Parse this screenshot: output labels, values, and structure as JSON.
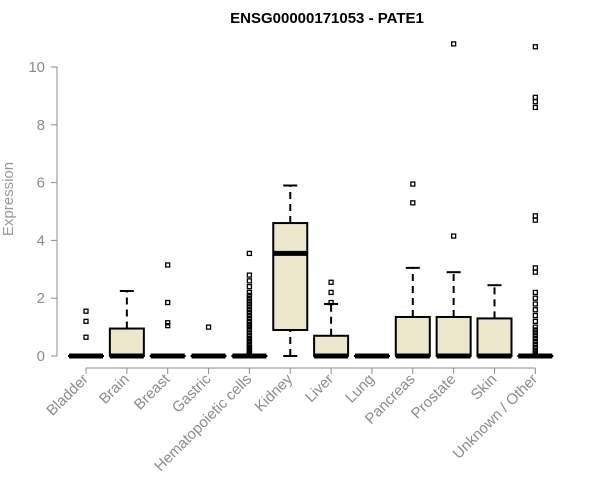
{
  "chart_data": {
    "type": "box",
    "title": "ENSG00000171053 - PATE1",
    "ylabel": "Expression",
    "xlabel": "",
    "ylim": [
      0,
      11
    ],
    "yticks": [
      0,
      2,
      4,
      6,
      8,
      10
    ],
    "grid": false,
    "box_fill": "#ede7cd",
    "categories": [
      "Bladder",
      "Brain",
      "Breast",
      "Gastric",
      "Hematopoietic cells",
      "Kidney",
      "Liver",
      "Lung",
      "Pancreas",
      "Prostate",
      "Skin",
      "Unknown / Other"
    ],
    "boxes": [
      {
        "min": 0,
        "q1": 0,
        "median": 0,
        "q3": 0,
        "max": 0,
        "outliers": [
          0.65,
          1.2,
          1.55
        ]
      },
      {
        "min": 0,
        "q1": 0,
        "median": 0,
        "q3": 0.95,
        "max": 2.25,
        "outliers": []
      },
      {
        "min": 0,
        "q1": 0,
        "median": 0,
        "q3": 0,
        "max": 0,
        "outliers": [
          1.05,
          1.15,
          1.85,
          3.15
        ]
      },
      {
        "min": 0,
        "q1": 0,
        "median": 0,
        "q3": 0,
        "max": 0,
        "outliers": [
          1.0
        ]
      },
      {
        "min": 0,
        "q1": 0,
        "median": 0,
        "q3": 0,
        "max": 0,
        "outliers": [
          0.05,
          0.1,
          0.15,
          0.2,
          0.25,
          0.3,
          0.35,
          0.4,
          0.5,
          0.55,
          0.6,
          0.7,
          0.8,
          0.9,
          1.0,
          1.05,
          1.1,
          1.2,
          1.3,
          1.4,
          1.5,
          1.6,
          1.7,
          1.8,
          1.9,
          2.0,
          2.1,
          2.2,
          2.4,
          2.6,
          2.8,
          3.55
        ]
      },
      {
        "min": 0,
        "q1": 0.9,
        "median": 3.55,
        "q3": 4.6,
        "max": 5.9,
        "outliers": []
      },
      {
        "min": 0,
        "q1": 0,
        "median": 0,
        "q3": 0.7,
        "max": 1.8,
        "outliers": [
          1.85,
          2.2,
          2.55
        ]
      },
      {
        "min": 0,
        "q1": 0,
        "median": 0,
        "q3": 0,
        "max": 0,
        "outliers": []
      },
      {
        "min": 0,
        "q1": 0,
        "median": 0,
        "q3": 1.35,
        "max": 3.05,
        "outliers": [
          5.3,
          5.95
        ]
      },
      {
        "min": 0,
        "q1": 0,
        "median": 0,
        "q3": 1.35,
        "max": 2.9,
        "outliers": [
          4.15,
          10.8
        ]
      },
      {
        "min": 0,
        "q1": 0,
        "median": 0,
        "q3": 1.3,
        "max": 2.45,
        "outliers": []
      },
      {
        "min": 0,
        "q1": 0,
        "median": 0,
        "q3": 0,
        "max": 0,
        "outliers": [
          0.05,
          0.1,
          0.15,
          0.2,
          0.3,
          0.4,
          0.5,
          0.6,
          0.7,
          0.8,
          0.9,
          1.0,
          1.2,
          1.4,
          1.6,
          1.8,
          2.0,
          2.2,
          2.9,
          3.05,
          4.7,
          4.85,
          8.6,
          8.8,
          8.95,
          10.7
        ]
      }
    ]
  }
}
